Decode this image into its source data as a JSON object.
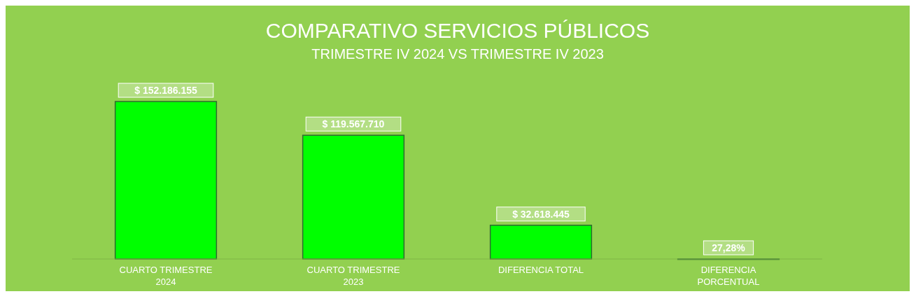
{
  "chart_data": {
    "type": "bar",
    "title": "COMPARATIVO SERVICIOS PÚBLICOS",
    "subtitle": "TRIMESTRE IV 2024 VS TRIMESTRE IV 2023",
    "categories": [
      "CUARTO TRIMESTRE 2024",
      "CUARTO TRIMESTRE 2023",
      "DIFERENCIA TOTAL",
      "DIFERENCIA PORCENTUAL"
    ],
    "values": [
      152186155,
      119567710,
      32618445,
      27.28
    ],
    "value_labels": [
      "$ 152.186.155",
      "$ 119.567.710",
      "$ 32.618.445",
      "27,28%"
    ],
    "color": "#00ff00"
  }
}
